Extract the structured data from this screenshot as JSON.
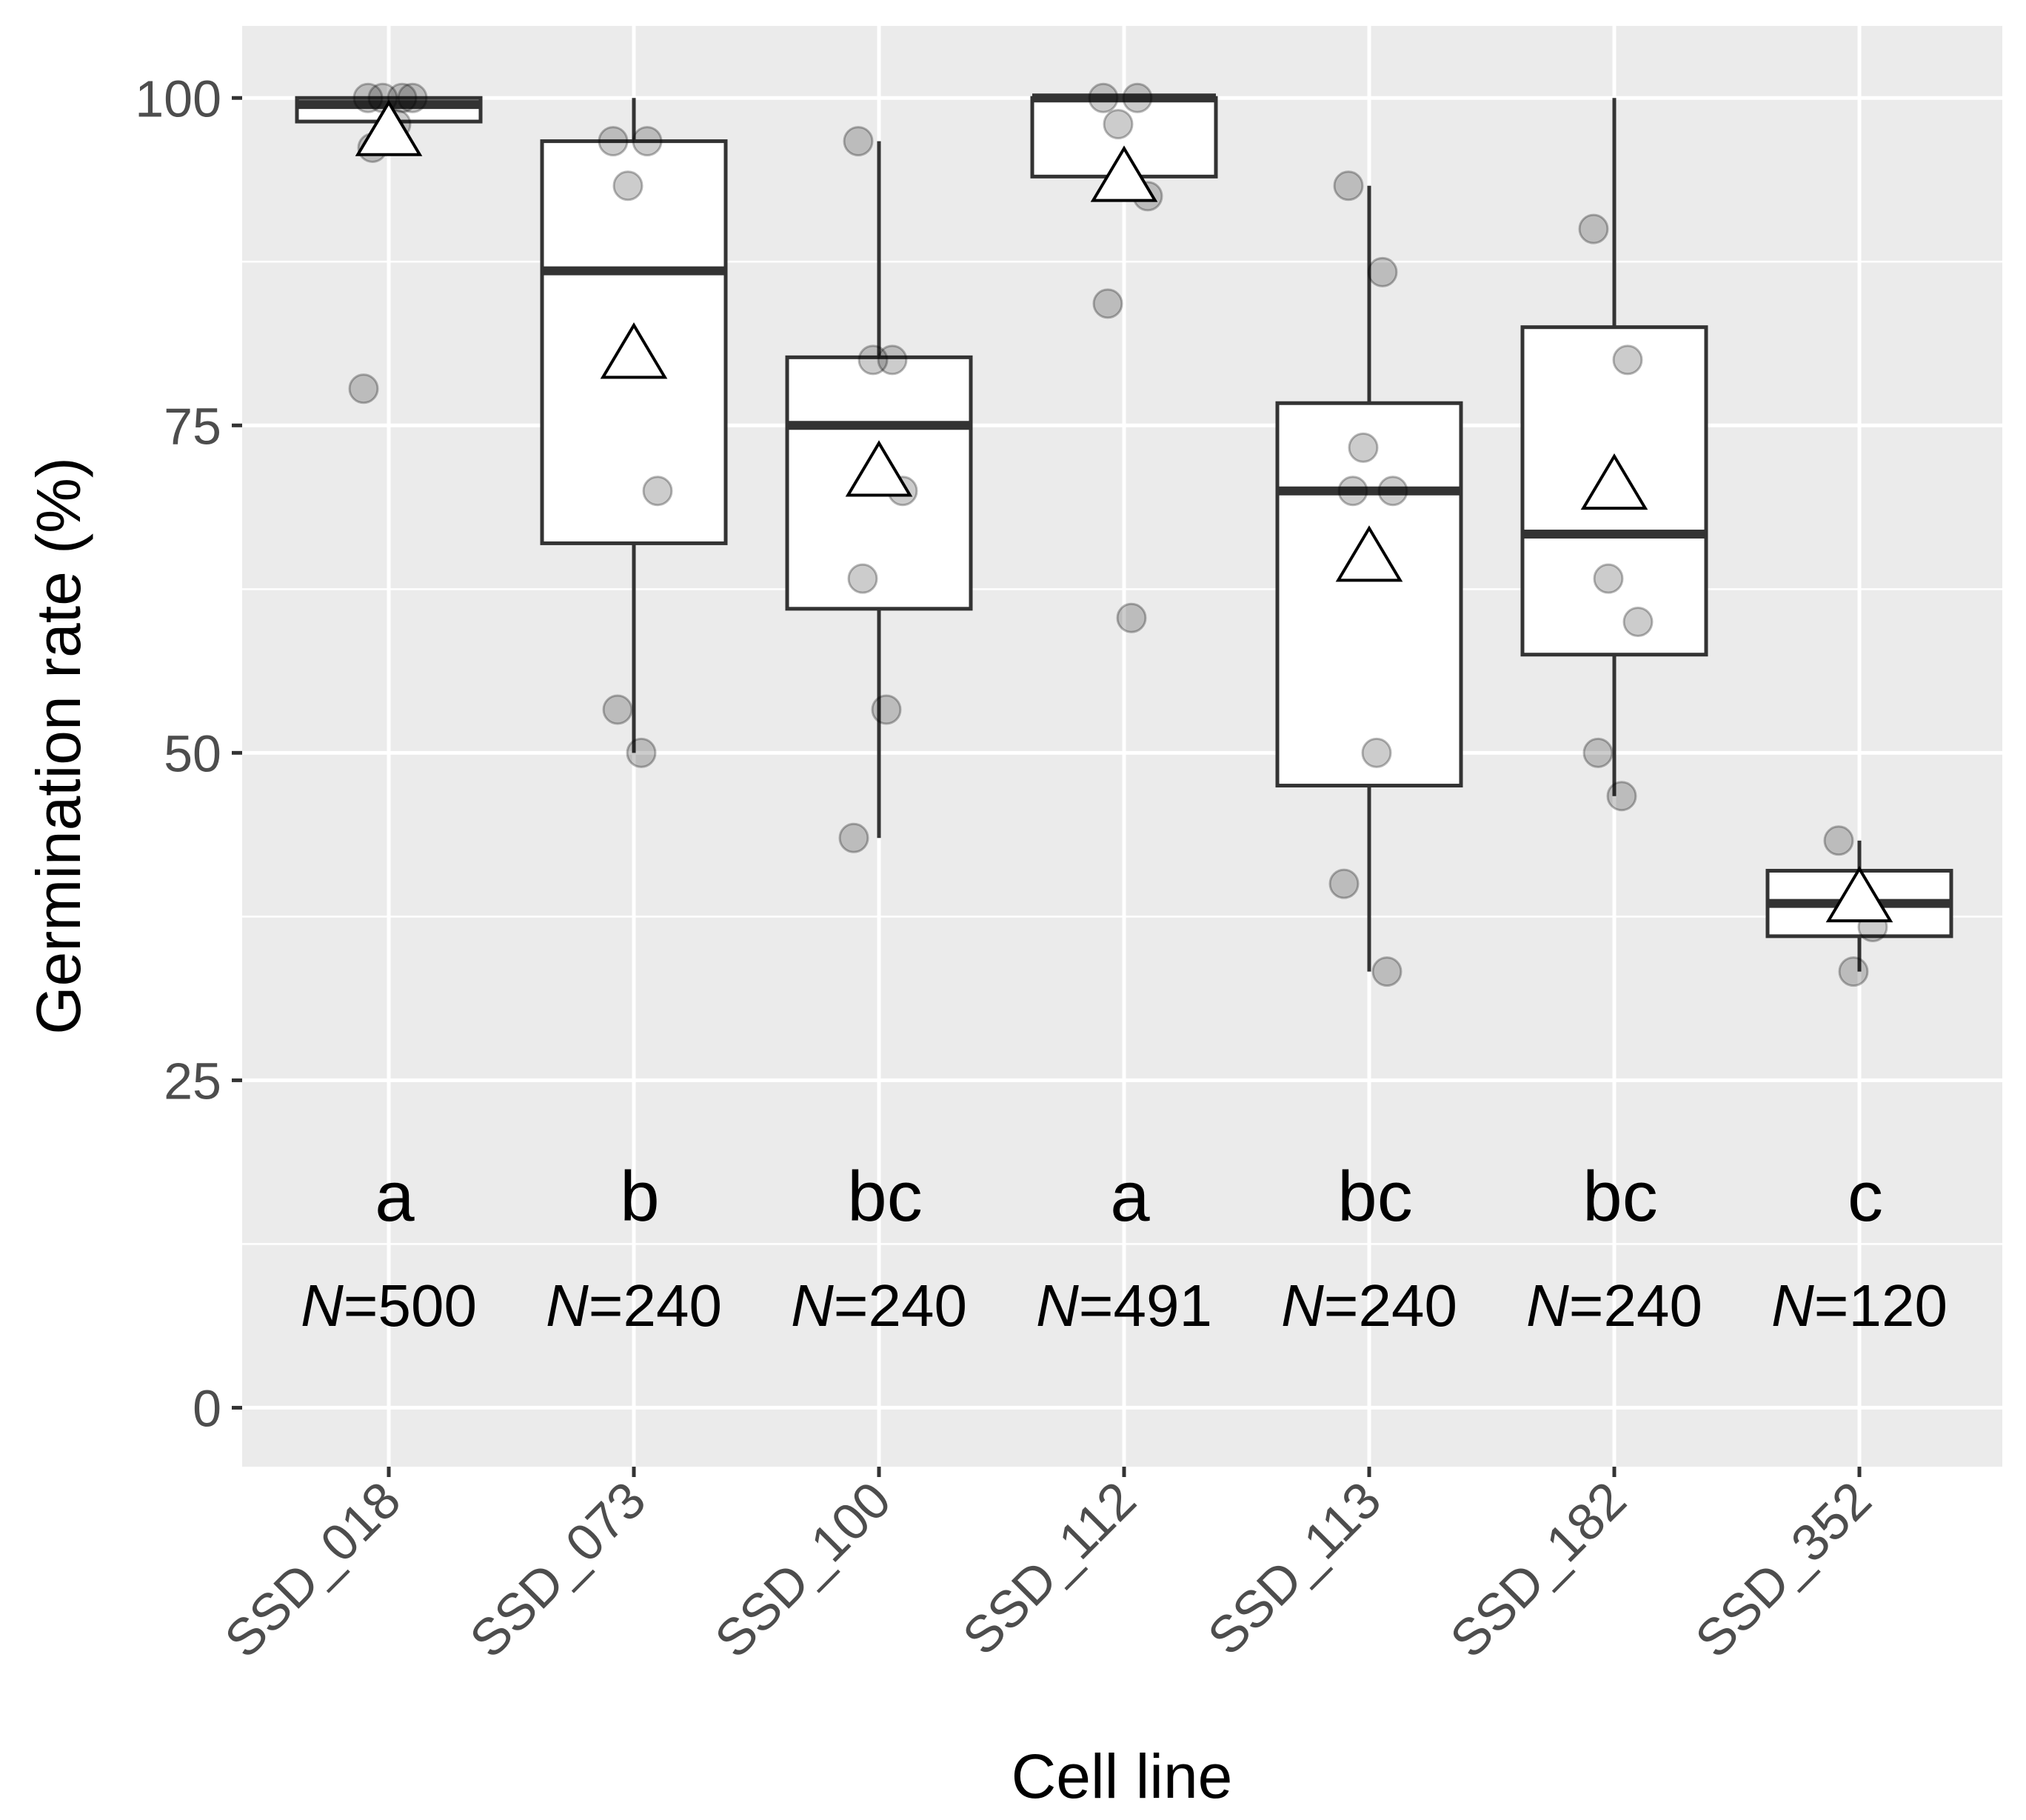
{
  "chart_data": {
    "type": "boxplot",
    "title": "",
    "xlabel": "Cell line",
    "ylabel": "Germination rate (%)",
    "ylim": [
      -4.5,
      105.5
    ],
    "yticks": [
      0,
      25,
      50,
      75,
      100
    ],
    "grid": true,
    "n_prefix": "N",
    "categories": [
      "SSD_018",
      "SSD_073",
      "SSD_100",
      "SSD_112",
      "SSD_113",
      "SSD_182",
      "SSD_352"
    ],
    "groups": [
      {
        "name": "SSD_018",
        "letter": "a",
        "n": "=500",
        "q1": 98.2,
        "median": 99.5,
        "q3": 100,
        "whisker_low": 98.2,
        "whisker_high": 100,
        "mean": 97.5,
        "points": [
          100,
          100,
          100,
          100,
          96.2,
          98.0,
          77.8
        ]
      },
      {
        "name": "SSD_073",
        "letter": "b",
        "n": "=240",
        "q1": 66.0,
        "median": 86.8,
        "q3": 96.7,
        "whisker_low": 50.0,
        "whisker_high": 100,
        "mean": 80.5,
        "points": [
          96.7,
          96.7,
          93.3,
          70.0,
          53.3,
          50.0
        ]
      },
      {
        "name": "SSD_100",
        "letter": "bc",
        "n": "=240",
        "q1": 61.0,
        "median": 75.0,
        "q3": 80.2,
        "whisker_low": 43.5,
        "whisker_high": 96.7,
        "mean": 71.5,
        "points": [
          96.7,
          80.0,
          80.0,
          70.0,
          63.3,
          53.3,
          43.5
        ]
      },
      {
        "name": "SSD_112",
        "letter": "a",
        "n": "=491",
        "q1": 94.0,
        "median": 100,
        "q3": 100,
        "whisker_low": 94.0,
        "whisker_high": 100,
        "mean": 94.0,
        "points": [
          100,
          100,
          98.0,
          92.5,
          84.3,
          60.3
        ]
      },
      {
        "name": "SSD_113",
        "letter": "bc",
        "n": "=240",
        "q1": 47.5,
        "median": 70.0,
        "q3": 76.7,
        "whisker_low": 33.3,
        "whisker_high": 93.3,
        "mean": 65.0,
        "points": [
          93.3,
          86.7,
          73.3,
          70.0,
          70.0,
          50.0,
          40.0,
          33.3
        ]
      },
      {
        "name": "SSD_182",
        "letter": "bc",
        "n": "=240",
        "q1": 57.5,
        "median": 66.7,
        "q3": 82.5,
        "whisker_low": 46.7,
        "whisker_high": 100,
        "mean": 70.5,
        "points": [
          90.0,
          80.0,
          63.3,
          60.0,
          50.0,
          46.7
        ]
      },
      {
        "name": "SSD_352",
        "letter": "c",
        "n": "=120",
        "q1": 36.0,
        "median": 38.5,
        "q3": 41.0,
        "whisker_low": 33.3,
        "whisker_high": 43.3,
        "mean": 39.0,
        "points": [
          43.3,
          36.7,
          33.3
        ]
      }
    ]
  }
}
